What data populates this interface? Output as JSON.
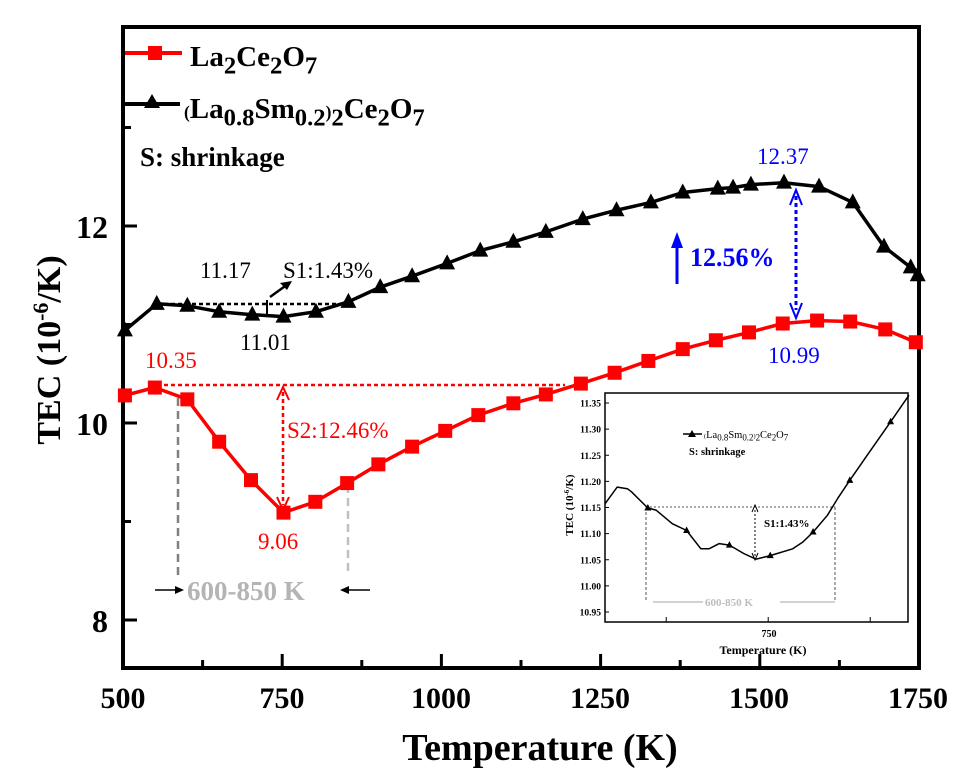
{
  "chart_data": {
    "type": "line",
    "xlabel": "Temperature (K)",
    "ylabel": "TEC (10^-6/K)",
    "ylabel_parts": {
      "pre": "TEC (10",
      "sup": "-6",
      "post": "/K)"
    },
    "xlim": [
      500,
      1750
    ],
    "ylim": [
      7.5,
      14.0
    ],
    "xticks": [
      "500",
      "750",
      "1000",
      "1250",
      "1500",
      "1750"
    ],
    "yticks": [
      "8",
      "10",
      "12"
    ],
    "legend_position": "top-left",
    "legend_note": "S: shrinkage",
    "colors": {
      "red": "#ff0000",
      "black": "#000000",
      "blue": "#0000ff",
      "gray": "#b4b4b4",
      "darkgray": "#808080"
    },
    "series": [
      {
        "name": "La2Ce2O7",
        "marker": "square",
        "color": "#ff0000",
        "x": [
          503,
          550,
          601,
          651,
          701,
          752,
          802,
          852,
          901,
          954,
          1006,
          1058,
          1113,
          1164,
          1219,
          1272,
          1325,
          1379,
          1431,
          1483,
          1536,
          1590,
          1642,
          1697,
          1745
        ],
        "y": [
          10.28,
          10.36,
          10.24,
          9.81,
          9.42,
          9.09,
          9.2,
          9.39,
          9.58,
          9.76,
          9.92,
          10.08,
          10.2,
          10.29,
          10.4,
          10.51,
          10.63,
          10.75,
          10.84,
          10.92,
          11.01,
          11.04,
          11.03,
          10.95,
          10.82
        ]
      },
      {
        "name": "(La0.8Sm0.2)2Ce2O7",
        "marker": "triangle",
        "color": "#000000",
        "x": [
          503,
          553,
          601,
          651,
          703,
          752,
          803,
          854,
          904,
          954,
          1009,
          1061,
          1113,
          1164,
          1222,
          1275,
          1329,
          1379,
          1434,
          1458,
          1486,
          1538,
          1593,
          1646,
          1695,
          1737,
          1748
        ],
        "y": [
          10.94,
          11.21,
          11.19,
          11.13,
          11.1,
          11.08,
          11.13,
          11.23,
          11.38,
          11.49,
          11.62,
          11.75,
          11.84,
          11.94,
          12.07,
          12.16,
          12.24,
          12.34,
          12.38,
          12.39,
          12.42,
          12.44,
          12.4,
          12.24,
          11.79,
          11.58,
          11.5
        ]
      }
    ],
    "annotations": {
      "black_max": "11.17",
      "black_min": "11.01",
      "s1": "S1:1.43%",
      "red_max": "10.35",
      "red_min": "9.06",
      "s2": "S2:12.46%",
      "range": "600-850 K",
      "black_peak": "12.37",
      "red_peak": "10.99",
      "increase": "12.56%"
    },
    "inset": {
      "type": "line",
      "series_name": "(La0.8Sm0.2)2Ce2O7",
      "note": "S: shrinkage",
      "xlabel": "Temperature (K)",
      "ylabel_parts": {
        "pre": "TEC (10",
        "sup": "-6",
        "post": "/K)"
      },
      "xticks": [
        "750"
      ],
      "yticks": [
        "11.35",
        "11.30",
        "11.25",
        "11.20",
        "11.15",
        "11.10",
        "11.05",
        "11.00",
        "10.95"
      ],
      "xlim": [
        670,
        818.5
      ],
      "ylim": [
        10.93,
        11.37
      ],
      "x": [
        670,
        676,
        681,
        683,
        691,
        695,
        703,
        710,
        717,
        721,
        726,
        731,
        738,
        744,
        751,
        762,
        767,
        772,
        779,
        784,
        790,
        798,
        810,
        819
      ],
      "y": [
        11.157,
        11.189,
        11.186,
        11.18,
        11.149,
        11.145,
        11.119,
        11.106,
        11.071,
        11.071,
        11.081,
        11.078,
        11.062,
        11.051,
        11.058,
        11.071,
        11.084,
        11.103,
        11.135,
        11.167,
        11.202,
        11.247,
        11.314,
        11.365
      ],
      "marker_x": [
        691,
        710,
        731,
        751,
        772,
        790,
        810
      ],
      "s1": "S1:1.43%",
      "range": "600-850 K"
    }
  }
}
